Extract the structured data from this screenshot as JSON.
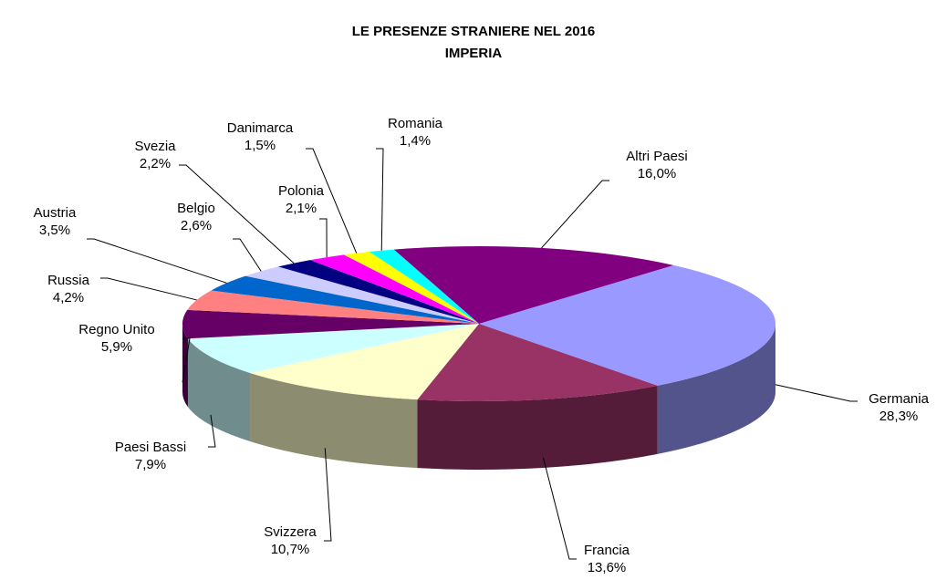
{
  "chart_data": {
    "type": "pie",
    "title": "LE PRESENZE STRANIERE NEL 2016",
    "subtitle": "IMPERIA",
    "categories": [
      "Germania",
      "Francia",
      "Svizzera",
      "Paesi Bassi",
      "Regno Unito",
      "Russia",
      "Austria",
      "Belgio",
      "Svezia",
      "Polonia",
      "Danimarca",
      "Romania",
      "Altri Paesi"
    ],
    "values": [
      28.3,
      13.6,
      10.7,
      7.9,
      5.9,
      4.2,
      3.5,
      2.6,
      2.2,
      2.1,
      1.5,
      1.4,
      16.0
    ],
    "value_labels": [
      "28,3%",
      "13,6%",
      "10,7%",
      "7,9%",
      "5,9%",
      "4,2%",
      "3,5%",
      "2,6%",
      "2,2%",
      "2,1%",
      "1,5%",
      "1,4%",
      "16,0%"
    ],
    "colors": [
      "#9999ff",
      "#993366",
      "#ffffcc",
      "#ccffff",
      "#660066",
      "#ff8080",
      "#0066cc",
      "#ccccff",
      "#000080",
      "#ff00ff",
      "#ffff00",
      "#00ffff",
      "#800080"
    ]
  }
}
